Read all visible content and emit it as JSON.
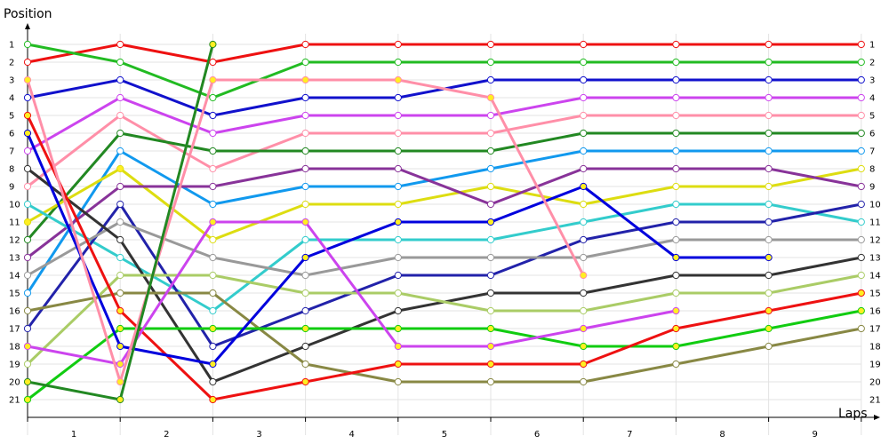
{
  "chart_data": {
    "type": "line",
    "ylabel": "Position",
    "xlabel": "Laps",
    "x": [
      0,
      1,
      2,
      3,
      4,
      5,
      6,
      7,
      8,
      9
    ],
    "lap_labels": [
      "1",
      "2",
      "3",
      "4",
      "5",
      "6",
      "7",
      "8",
      "9"
    ],
    "ylim": [
      1,
      21
    ],
    "y_ticks": [
      1,
      2,
      3,
      4,
      5,
      6,
      7,
      8,
      9,
      10,
      11,
      12,
      13,
      14,
      15,
      16,
      17,
      18,
      19,
      20,
      21
    ],
    "y_inverted": true,
    "grid": true,
    "legend": "none",
    "marker_colors": {
      "normal": "#ffffff",
      "pit": "#ffee22"
    },
    "series": [
      {
        "color": "#ee1111",
        "values": [
          2,
          1,
          2,
          1,
          1,
          1,
          1,
          1,
          1,
          1
        ],
        "pit": []
      },
      {
        "color": "#22bb22",
        "values": [
          1,
          2,
          4,
          2,
          2,
          2,
          2,
          2,
          2,
          2
        ],
        "pit": []
      },
      {
        "color": "#1111cc",
        "values": [
          4,
          3,
          5,
          4,
          4,
          3,
          3,
          3,
          3,
          3
        ],
        "pit": []
      },
      {
        "color": "#cc44ee",
        "values": [
          7,
          4,
          6,
          5,
          5,
          5,
          4,
          4,
          4,
          4
        ],
        "pit": []
      },
      {
        "color": "#ff8fa8",
        "values": [
          9,
          5,
          8,
          6,
          6,
          6,
          5,
          5,
          5,
          5
        ],
        "pit": []
      },
      {
        "color": "#228822",
        "values": [
          12,
          6,
          7,
          7,
          7,
          7,
          6,
          6,
          6,
          6
        ],
        "pit": []
      },
      {
        "color": "#1199ee",
        "values": [
          15,
          7,
          10,
          9,
          9,
          8,
          7,
          7,
          7,
          7
        ],
        "pit": []
      },
      {
        "color": "#dddd11",
        "values": [
          11,
          8,
          12,
          10,
          10,
          9,
          10,
          9,
          9,
          8
        ],
        "pit": [
          0,
          1
        ]
      },
      {
        "color": "#883399",
        "values": [
          13,
          9,
          9,
          8,
          8,
          10,
          8,
          8,
          8,
          9
        ],
        "pit": []
      },
      {
        "color": "#33cccc",
        "values": [
          10,
          13,
          16,
          12,
          12,
          12,
          11,
          10,
          10,
          11
        ],
        "pit": []
      },
      {
        "color": "#2222aa",
        "values": [
          17,
          10,
          18,
          16,
          14,
          14,
          12,
          11,
          11,
          10
        ],
        "pit": []
      },
      {
        "color": "#999999",
        "values": [
          14,
          11,
          13,
          14,
          13,
          13,
          13,
          12,
          12,
          12
        ],
        "pit": []
      },
      {
        "color": "#333333",
        "values": [
          8,
          12,
          20,
          18,
          16,
          15,
          15,
          14,
          14,
          13
        ],
        "pit": []
      },
      {
        "color": "#aacc66",
        "values": [
          19,
          14,
          14,
          15,
          15,
          16,
          16,
          15,
          15,
          14
        ],
        "pit": []
      },
      {
        "color": "#888844",
        "values": [
          16,
          15,
          15,
          19,
          20,
          20,
          20,
          19,
          18,
          17
        ],
        "pit": []
      },
      {
        "color": "#11cc11",
        "values": [
          21,
          17,
          17,
          17,
          17,
          17,
          18,
          18,
          17,
          16
        ],
        "pit": [
          0,
          1,
          2,
          3,
          4,
          5,
          6,
          7,
          8,
          9
        ]
      },
      {
        "color": "#ee1111",
        "values": [
          5,
          16,
          21,
          20,
          19,
          19,
          19,
          17,
          16,
          15
        ],
        "pit": [
          0,
          1,
          2,
          3,
          4,
          5,
          6,
          7,
          8,
          9
        ]
      },
      {
        "color": "#0000dd",
        "values": [
          6,
          18,
          19,
          13,
          11,
          11,
          9,
          13,
          13,
          null
        ],
        "pit": [
          0,
          1,
          2,
          3,
          4,
          5,
          6,
          7,
          8
        ]
      },
      {
        "color": "#cc44ee",
        "values": [
          18,
          19,
          11,
          11,
          18,
          18,
          17,
          16,
          null,
          null
        ],
        "pit": [
          0,
          1,
          2,
          3,
          4,
          5,
          6,
          7
        ]
      },
      {
        "color": "#ff8fa8",
        "values": [
          3,
          20,
          3,
          3,
          3,
          4,
          14,
          null,
          null,
          null
        ],
        "pit": [
          0,
          1,
          2,
          3,
          4,
          5,
          6
        ]
      },
      {
        "color": "#228822",
        "values": [
          20,
          21,
          1,
          null,
          null,
          null,
          null,
          null,
          null,
          null
        ],
        "pit": [
          0,
          1,
          2
        ]
      }
    ]
  }
}
